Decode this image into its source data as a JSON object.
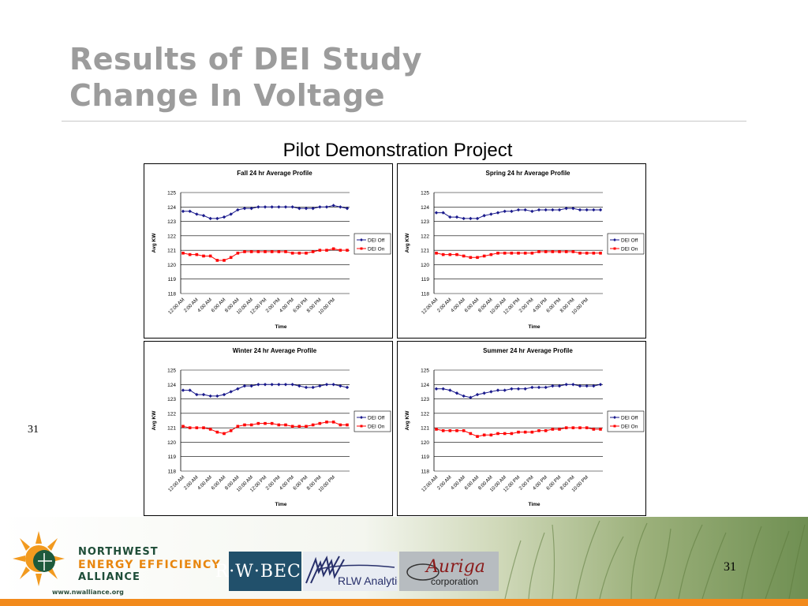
{
  "slide": {
    "title_line1": "Results of DEI Study",
    "title_line2": "Change In Voltage",
    "subtitle": "Pilot Demonstration Project",
    "side_number": "31",
    "footer_number": "31"
  },
  "footer": {
    "nw_line1": "NORTHWEST",
    "nw_line2": "ENERGY EFFICIENCY",
    "nw_line3": "ALLIANCE",
    "nw_url": "www.nwalliance.org",
    "rw_beck": "R·W·BECK",
    "rlw": "RLW Analytics",
    "auriga": "Auriga",
    "auriga_sub": "corporation"
  },
  "chart_data": [
    {
      "type": "line",
      "title": "Fall 24 hr Average Profile",
      "xlabel": "Time",
      "ylabel": "Avg KW",
      "ylim": [
        118,
        125
      ],
      "yticks": [
        118,
        119,
        120,
        121,
        122,
        123,
        124,
        125
      ],
      "xticks": [
        "12:00 AM",
        "2:00 AM",
        "4:00 AM",
        "6:00 AM",
        "8:00 AM",
        "10:00 AM",
        "12:00 PM",
        "2:00 PM",
        "4:00 PM",
        "6:00 PM",
        "8:00 PM",
        "10:00 PM"
      ],
      "grid": true,
      "legend": "right",
      "series": [
        {
          "name": "DEI Off",
          "color": "#1a1a8c",
          "marker": "diamond",
          "values": [
            123.7,
            123.7,
            123.5,
            123.4,
            123.2,
            123.2,
            123.3,
            123.5,
            123.8,
            123.9,
            123.9,
            124.0,
            124.0,
            124.0,
            124.0,
            124.0,
            124.0,
            123.9,
            123.9,
            123.9,
            124.0,
            124.0,
            124.1,
            124.0,
            123.9
          ]
        },
        {
          "name": "DEI On",
          "color": "#ff0000",
          "marker": "square",
          "values": [
            120.8,
            120.7,
            120.7,
            120.6,
            120.6,
            120.3,
            120.3,
            120.5,
            120.8,
            120.9,
            120.9,
            120.9,
            120.9,
            120.9,
            120.9,
            120.9,
            120.8,
            120.8,
            120.8,
            120.9,
            121.0,
            121.0,
            121.1,
            121.0,
            121.0
          ]
        }
      ]
    },
    {
      "type": "line",
      "title": "Spring 24 hr Average Profile",
      "xlabel": "Time",
      "ylabel": "Avg KW",
      "ylim": [
        118,
        125
      ],
      "yticks": [
        118,
        119,
        120,
        121,
        122,
        123,
        124,
        125
      ],
      "xticks": [
        "12:00 AM",
        "2:00 AM",
        "4:00 AM",
        "6:00 AM",
        "8:00 AM",
        "10:00 AM",
        "12:00 PM",
        "2:00 PM",
        "4:00 PM",
        "6:00 PM",
        "8:00 PM",
        "10:00 PM"
      ],
      "grid": true,
      "legend": "right",
      "series": [
        {
          "name": "DEI Off",
          "color": "#1a1a8c",
          "marker": "diamond",
          "values": [
            123.6,
            123.6,
            123.3,
            123.3,
            123.2,
            123.2,
            123.2,
            123.4,
            123.5,
            123.6,
            123.7,
            123.7,
            123.8,
            123.8,
            123.7,
            123.8,
            123.8,
            123.8,
            123.8,
            123.9,
            123.9,
            123.8,
            123.8,
            123.8,
            123.8
          ]
        },
        {
          "name": "DEI On",
          "color": "#ff0000",
          "marker": "square",
          "values": [
            120.8,
            120.7,
            120.7,
            120.7,
            120.6,
            120.5,
            120.5,
            120.6,
            120.7,
            120.8,
            120.8,
            120.8,
            120.8,
            120.8,
            120.8,
            120.9,
            120.9,
            120.9,
            120.9,
            120.9,
            120.9,
            120.8,
            120.8,
            120.8,
            120.8
          ]
        }
      ]
    },
    {
      "type": "line",
      "title": "Winter 24 hr Average Profile",
      "xlabel": "Time",
      "ylabel": "Avg KW",
      "ylim": [
        118,
        125
      ],
      "yticks": [
        118,
        119,
        120,
        121,
        122,
        123,
        124,
        125
      ],
      "xticks": [
        "12:00 AM",
        "2:00 AM",
        "4:00 AM",
        "6:00 AM",
        "8:00 AM",
        "10:00 AM",
        "12:00 PM",
        "2:00 PM",
        "4:00 PM",
        "6:00 PM",
        "8:00 PM",
        "10:00 PM"
      ],
      "grid": true,
      "legend": "right",
      "series": [
        {
          "name": "DEI Off",
          "color": "#1a1a8c",
          "marker": "diamond",
          "values": [
            123.6,
            123.6,
            123.3,
            123.3,
            123.2,
            123.2,
            123.3,
            123.5,
            123.7,
            123.9,
            123.9,
            124.0,
            124.0,
            124.0,
            124.0,
            124.0,
            124.0,
            123.9,
            123.8,
            123.8,
            123.9,
            124.0,
            124.0,
            123.9,
            123.8
          ]
        },
        {
          "name": "DEI On",
          "color": "#ff0000",
          "marker": "square",
          "values": [
            121.1,
            121.0,
            121.0,
            121.0,
            120.9,
            120.7,
            120.6,
            120.8,
            121.1,
            121.2,
            121.2,
            121.3,
            121.3,
            121.3,
            121.2,
            121.2,
            121.1,
            121.1,
            121.1,
            121.2,
            121.3,
            121.4,
            121.4,
            121.2,
            121.2
          ]
        }
      ]
    },
    {
      "type": "line",
      "title": "Summer 24 hr Average Profile",
      "xlabel": "Time",
      "ylabel": "Avg KW",
      "ylim": [
        118,
        125
      ],
      "yticks": [
        118,
        119,
        120,
        121,
        122,
        123,
        124,
        125
      ],
      "xticks": [
        "12:00 AM",
        "2:00 AM",
        "4:00 AM",
        "6:00 AM",
        "8:00 AM",
        "10:00 AM",
        "12:00 PM",
        "2:00 PM",
        "4:00 PM",
        "6:00 PM",
        "8:00 PM",
        "10:00 PM"
      ],
      "grid": true,
      "legend": "right",
      "series": [
        {
          "name": "DEI Off",
          "color": "#1a1a8c",
          "marker": "diamond",
          "values": [
            123.7,
            123.7,
            123.6,
            123.4,
            123.2,
            123.1,
            123.3,
            123.4,
            123.5,
            123.6,
            123.6,
            123.7,
            123.7,
            123.7,
            123.8,
            123.8,
            123.8,
            123.9,
            123.9,
            124.0,
            124.0,
            123.9,
            123.9,
            123.9,
            124.0
          ]
        },
        {
          "name": "DEI On",
          "color": "#ff0000",
          "marker": "square",
          "values": [
            120.9,
            120.8,
            120.8,
            120.8,
            120.8,
            120.6,
            120.4,
            120.5,
            120.5,
            120.6,
            120.6,
            120.6,
            120.7,
            120.7,
            120.7,
            120.8,
            120.8,
            120.9,
            120.9,
            121.0,
            121.0,
            121.0,
            121.0,
            120.9,
            120.9
          ]
        }
      ]
    }
  ]
}
